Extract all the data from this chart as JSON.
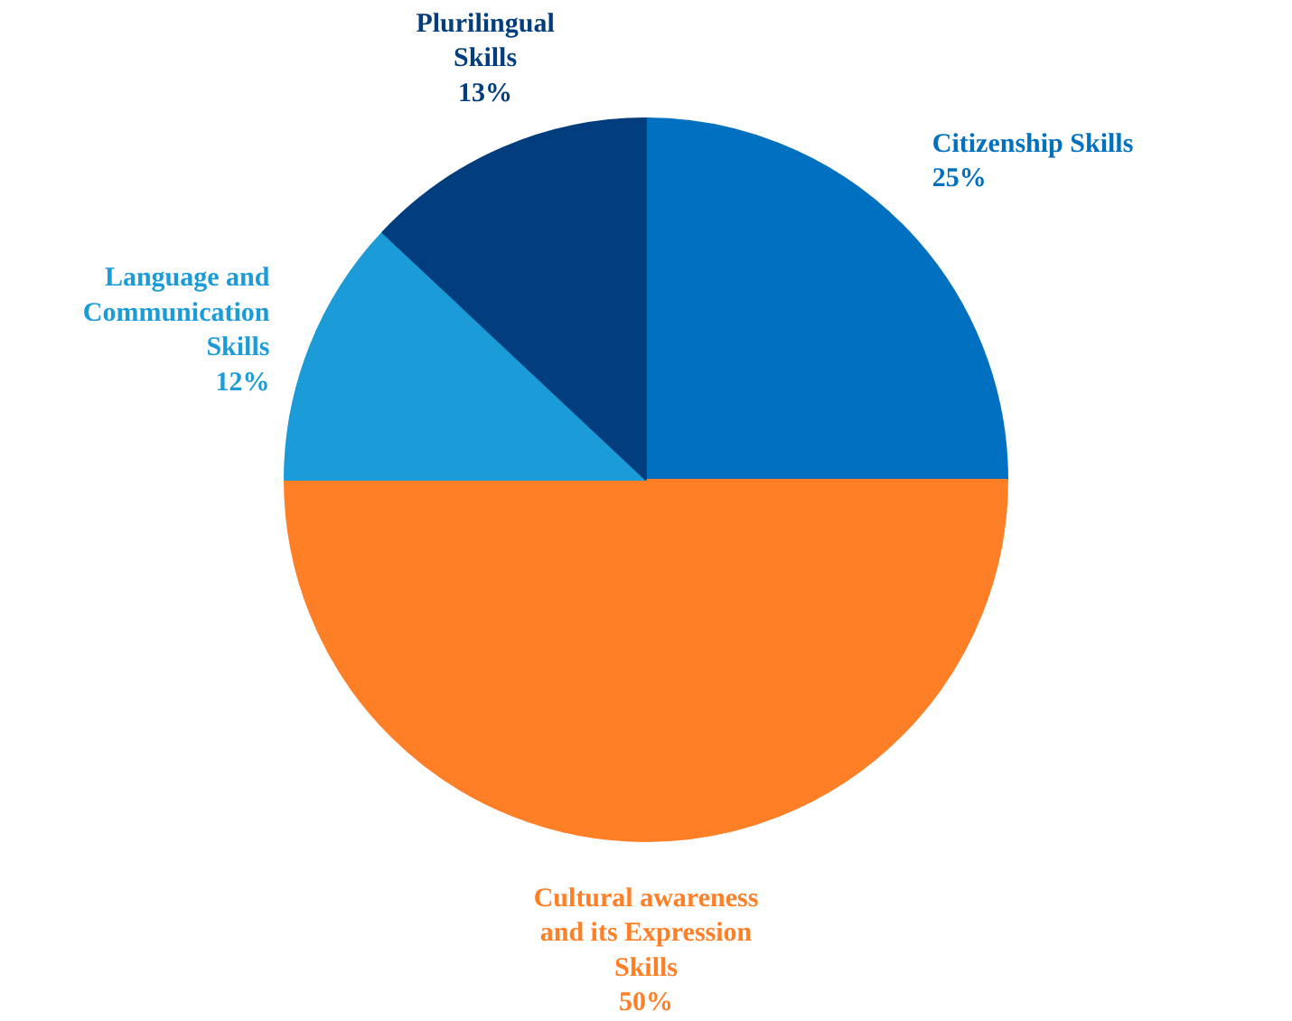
{
  "chart_data": {
    "type": "pie",
    "categories": [
      "Citizenship Skills",
      "Cultural awareness and its Expression Skills",
      "Language and Communication Skills",
      "Plurilingual Skills"
    ],
    "values": [
      25,
      50,
      12,
      13
    ],
    "colors": [
      "#0070c0",
      "#ff7f27",
      "#1b9bd7",
      "#023e7d"
    ],
    "value_labels": [
      "25%",
      "50%",
      "12%",
      "13%"
    ]
  }
}
